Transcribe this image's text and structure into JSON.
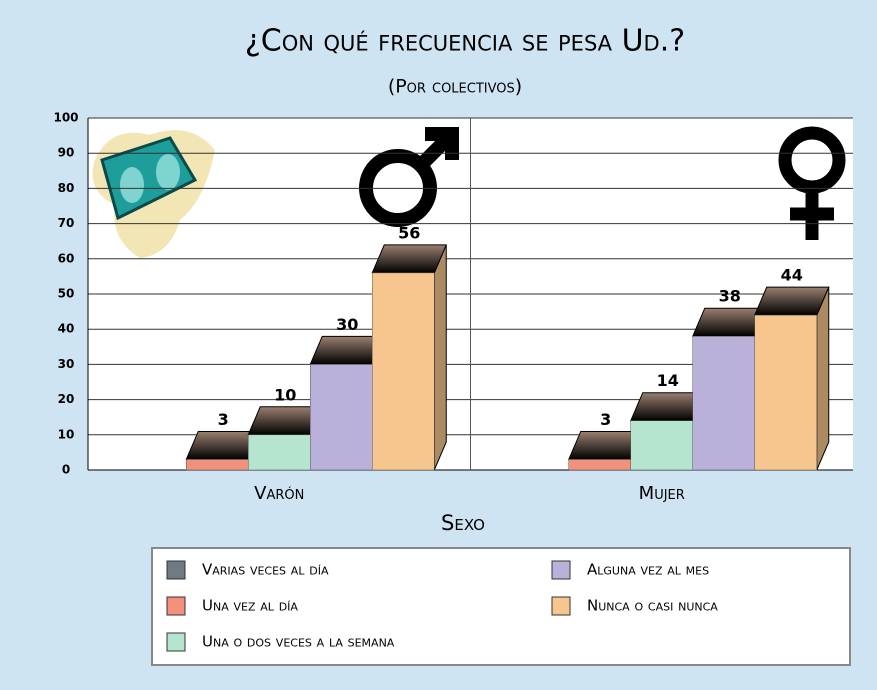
{
  "chart_data": {
    "type": "bar3d",
    "title": "¿Con qué frecuencia se pesa Ud.?",
    "subtitle": "(Por colectivos)",
    "x_label": "Sexo",
    "categories": [
      "Varón",
      "Mujer"
    ],
    "series": [
      {
        "name": "Varias veces al día",
        "color": "#6e7a84",
        "values": [
          null,
          null
        ]
      },
      {
        "name": "Una vez al día",
        "color": "#f2917c",
        "values": [
          3,
          3
        ]
      },
      {
        "name": "Una o dos veces a la semana",
        "color": "#b5e4cf",
        "values": [
          10,
          14
        ]
      },
      {
        "name": "Alguna vez al mes",
        "color": "#b9b1d9",
        "values": [
          30,
          38
        ]
      },
      {
        "name": "Nunca o casi nunca",
        "color": "#f6c68e",
        "values": [
          56,
          44
        ]
      }
    ],
    "ylim": [
      0,
      100
    ],
    "yticks": [
      0,
      10,
      20,
      30,
      40,
      50,
      60,
      70,
      80,
      90,
      100
    ],
    "grid": true
  }
}
